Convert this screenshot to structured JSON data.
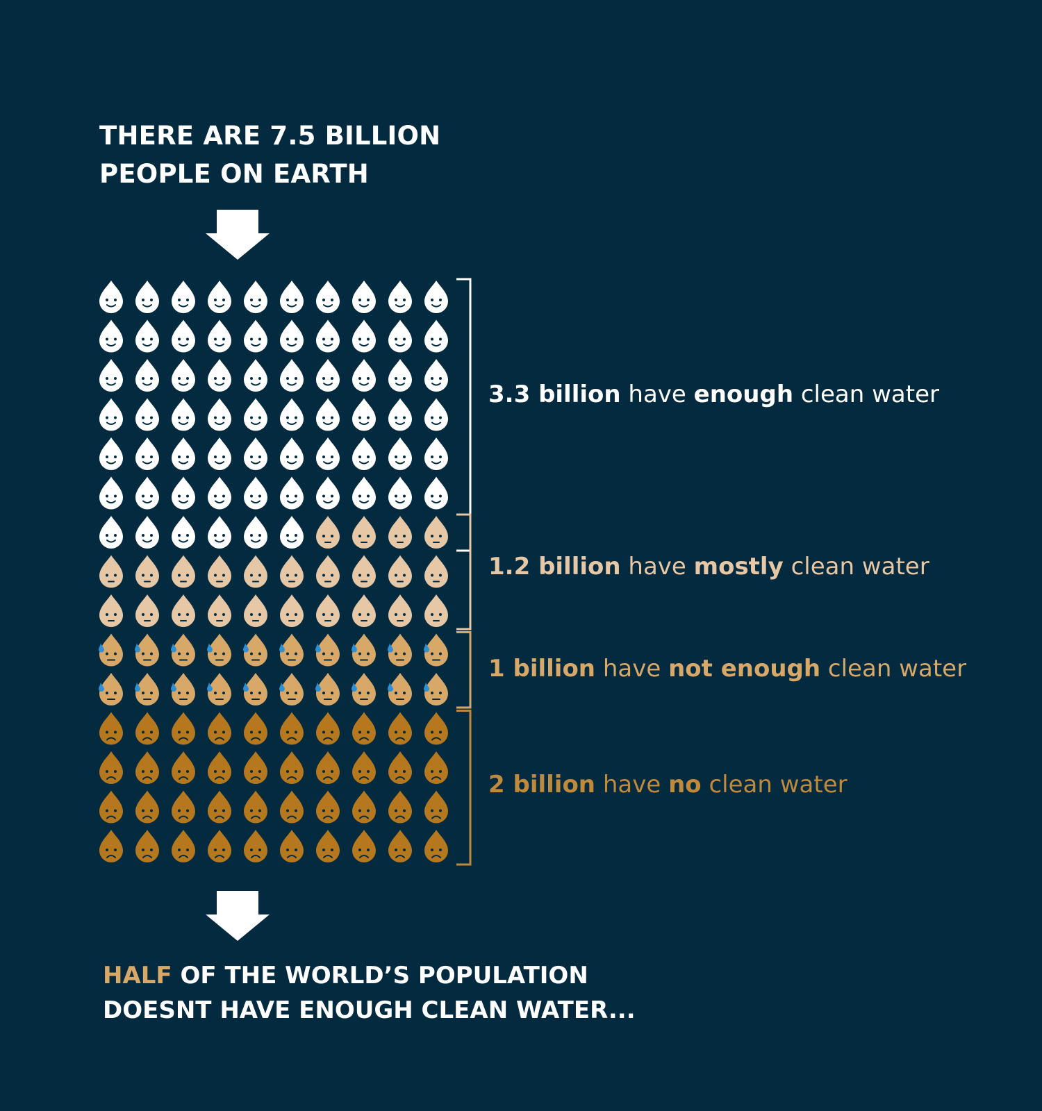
{
  "headline": {
    "line1": "THERE ARE 7.5 BILLION",
    "line2": "PEOPLE ON EARTH"
  },
  "chart_data": {
    "type": "pictogram",
    "title": "THERE ARE 7.5 BILLION PEOPLE ON EARTH",
    "grid_columns": 10,
    "total_icons": 150,
    "series": [
      {
        "name": "enough clean water",
        "icons": 66,
        "face": "happy",
        "color": "#ffffff",
        "label": {
          "value": "3.3 billion",
          "middle": "have",
          "key": "enough",
          "tail": "clean water"
        }
      },
      {
        "name": "mostly clean water",
        "icons": 24,
        "face": "neutral",
        "color": "#e6c7a6",
        "label": {
          "value": "1.2 billion",
          "middle": "have",
          "key": "mostly",
          "tail": "clean water"
        }
      },
      {
        "name": "not enough clean water",
        "icons": 20,
        "face": "sweating",
        "color": "#d8a869",
        "label": {
          "value": "1 billion",
          "middle": "have",
          "key": "not enough",
          "tail": "clean water"
        }
      },
      {
        "name": "no clean water",
        "icons": 40,
        "face": "sad",
        "color": "#b5781f",
        "label": {
          "value": "2 billion",
          "middle": "have",
          "key": "no",
          "tail": "clean water"
        }
      }
    ],
    "bracket_colors": [
      "#ffffff",
      "#e6c7a6",
      "#d8a869",
      "#c08a3c"
    ],
    "face_color": "#032a3f",
    "sweat_color": "#2f8fd3"
  },
  "conclusion": {
    "highlight": "HALF",
    "rest_line1": " OF THE WORLD’S POPULATION",
    "line2": "DOESNT HAVE ENOUGH CLEAN WATER..."
  },
  "colors": {
    "background": "#032a3f",
    "text": "#ffffff",
    "highlight": "#d8a869"
  }
}
